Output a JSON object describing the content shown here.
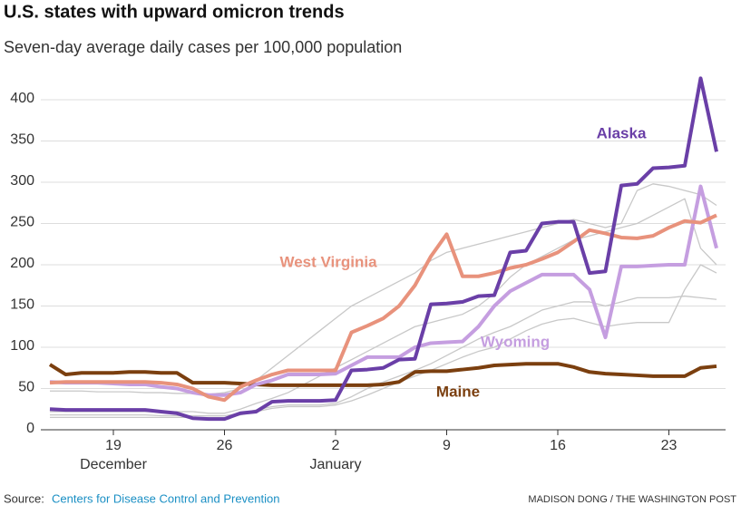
{
  "chart_data": {
    "type": "line",
    "title": "U.S. states with upward omicron trends",
    "subtitle": "Seven-day average daily cases per 100,000 population",
    "categories": [
      null,
      null,
      null,
      null,
      "19",
      null,
      null,
      null,
      null,
      null,
      null,
      "26",
      null,
      null,
      null,
      null,
      null,
      null,
      "2",
      null,
      null,
      null,
      null,
      null,
      null,
      "9",
      null,
      null,
      null,
      null,
      null,
      null,
      "16",
      null,
      null,
      null,
      null,
      null,
      null,
      "23",
      null,
      null,
      null
    ],
    "months": [
      "December",
      "January"
    ],
    "ylim": [
      0,
      430
    ],
    "yticks": [
      0,
      50,
      100,
      150,
      200,
      250,
      300,
      350,
      400
    ],
    "grid": true,
    "series": [
      {
        "color": "#c8c8c8",
        "values": [
          47,
          47,
          47,
          46,
          46,
          46,
          45,
          45,
          44,
          44,
          43,
          45,
          50,
          60,
          75,
          90,
          105,
          120,
          135,
          150,
          160,
          170,
          180,
          190,
          205,
          215,
          220,
          225,
          230,
          235,
          240,
          245,
          250,
          255,
          250,
          245,
          250,
          290,
          298,
          295,
          290,
          285,
          272
        ]
      },
      {
        "color": "#c8c8c8",
        "values": [
          18,
          18,
          18,
          18,
          18,
          18,
          18,
          17,
          17,
          17,
          17,
          17,
          20,
          24,
          28,
          30,
          30,
          30,
          32,
          40,
          50,
          58,
          65,
          72,
          80,
          90,
          100,
          110,
          118,
          125,
          135,
          145,
          150,
          155,
          155,
          150,
          155,
          160,
          160,
          160,
          162,
          160,
          158
        ]
      },
      {
        "color": "#c8c8c8",
        "values": [
          22,
          22,
          22,
          22,
          22,
          22,
          22,
          22,
          22,
          22,
          20,
          20,
          25,
          32,
          38,
          45,
          55,
          65,
          75,
          85,
          95,
          105,
          115,
          125,
          130,
          135,
          140,
          150,
          165,
          185,
          200,
          210,
          220,
          230,
          235,
          240,
          245,
          250,
          260,
          270,
          280,
          220,
          200
        ]
      },
      {
        "color": "#c8c8c8",
        "values": [
          15,
          15,
          15,
          15,
          15,
          15,
          15,
          15,
          15,
          15,
          15,
          15,
          18,
          22,
          26,
          28,
          28,
          28,
          30,
          35,
          42,
          50,
          58,
          65,
          72,
          80,
          88,
          95,
          100,
          110,
          120,
          128,
          133,
          135,
          130,
          125,
          128,
          130,
          130,
          130,
          170,
          200,
          190
        ]
      },
      {
        "name": "Maine",
        "color": "#7b3f0f",
        "values": [
          79,
          67,
          69,
          69,
          69,
          70,
          70,
          69,
          69,
          57,
          57,
          57,
          56,
          55,
          54,
          54,
          54,
          54,
          54,
          54,
          54,
          55,
          58,
          70,
          71,
          71,
          73,
          75,
          78,
          79,
          80,
          80,
          80,
          76,
          70,
          68,
          67,
          66,
          65,
          65,
          65,
          75,
          77
        ]
      },
      {
        "name": "Wyoming",
        "color": "#c59ee0",
        "values": [
          58,
          57,
          57,
          57,
          56,
          55,
          55,
          52,
          50,
          45,
          42,
          42,
          45,
          55,
          60,
          67,
          67,
          67,
          68,
          78,
          88,
          88,
          88,
          100,
          105,
          106,
          107,
          125,
          150,
          168,
          178,
          188,
          188,
          188,
          170,
          112,
          198,
          198,
          199,
          200,
          200,
          295,
          220
        ]
      },
      {
        "name": "West Virginia",
        "color": "#e8927c",
        "values": [
          57,
          58,
          58,
          58,
          58,
          58,
          58,
          57,
          55,
          50,
          40,
          36,
          52,
          60,
          67,
          72,
          72,
          72,
          72,
          118,
          126,
          135,
          150,
          175,
          210,
          237,
          186,
          186,
          190,
          196,
          200,
          207,
          215,
          228,
          242,
          238,
          233,
          232,
          235,
          245,
          253,
          251,
          260
        ]
      },
      {
        "name": "Alaska",
        "color": "#6a3fa7",
        "values": [
          25,
          24,
          24,
          24,
          24,
          24,
          24,
          22,
          20,
          14,
          13,
          13,
          20,
          22,
          34,
          35,
          35,
          35,
          36,
          72,
          73,
          75,
          85,
          86,
          152,
          153,
          155,
          162,
          163,
          215,
          217,
          250,
          252,
          252,
          190,
          192,
          296,
          298,
          317,
          318,
          320,
          426,
          337
        ]
      }
    ]
  },
  "footer": {
    "source_label": "Source:",
    "source_link": "Centers for Disease Control and Prevention",
    "credit": "MADISON DONG / THE WASHINGTON POST"
  }
}
